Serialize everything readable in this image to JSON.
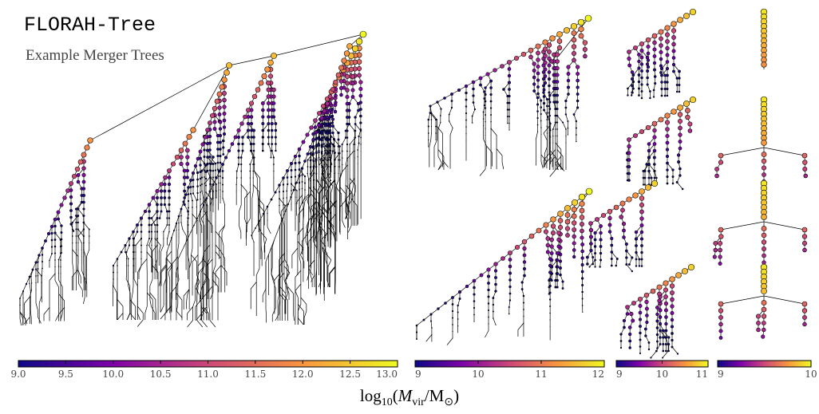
{
  "header": {
    "title": "FLORAH-Tree",
    "subtitle": "Example Merger Trees"
  },
  "colorbars": [
    {
      "lim": [
        9,
        13
      ],
      "ticks": [
        {
          "value": 9,
          "label": "9.0"
        },
        {
          "value": 9.5,
          "label": "9.5"
        },
        {
          "value": 10,
          "label": "10.0"
        },
        {
          "value": 10.5,
          "label": "10.5"
        },
        {
          "value": 11,
          "label": "11.0"
        },
        {
          "value": 11.5,
          "label": "11.5"
        },
        {
          "value": 12,
          "label": "12.0"
        },
        {
          "value": 12.5,
          "label": "12.5"
        },
        {
          "value": 13,
          "label": "13.0"
        }
      ]
    },
    {
      "lim": [
        9,
        12
      ],
      "ticks": [
        9,
        10,
        11,
        12
      ]
    },
    {
      "lim": [
        9,
        11
      ],
      "ticks": [
        9,
        10,
        11
      ]
    },
    {
      "lim": [
        9,
        10
      ],
      "ticks": [
        9,
        10
      ]
    }
  ],
  "xlabel": [
    "log",
    "10",
    "(",
    "M",
    "vir",
    "/M",
    "⊙",
    ")"
  ]
}
